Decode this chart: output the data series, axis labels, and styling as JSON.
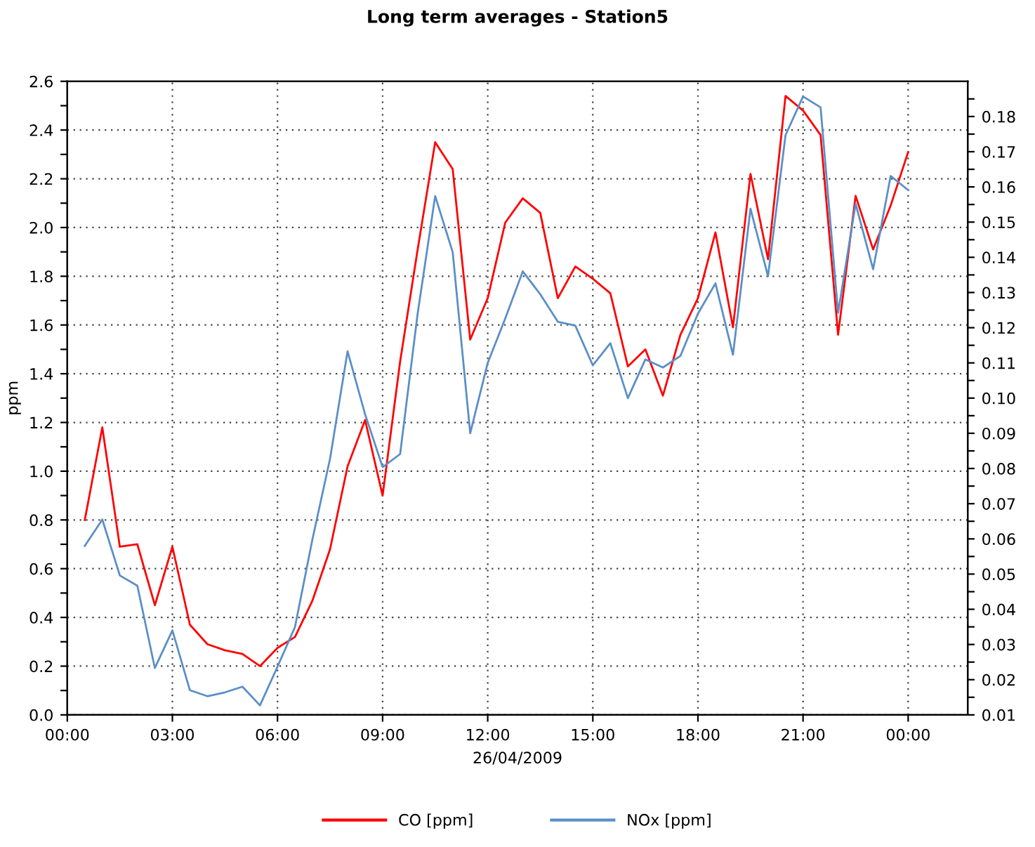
{
  "chart_data": {
    "type": "line",
    "title": "Long term averages - Station5",
    "xlabel": "26/04/2009",
    "ylabel": "ppm",
    "x": [
      0.5,
      1,
      1.5,
      2,
      2.5,
      3,
      3.5,
      4,
      4.5,
      5,
      5.5,
      6,
      6.5,
      7,
      7.5,
      8,
      8.5,
      9,
      9.5,
      10,
      10.5,
      11,
      11.5,
      12,
      12.5,
      13,
      13.5,
      14,
      14.5,
      15,
      15.5,
      16,
      16.5,
      17,
      17.5,
      18,
      18.5,
      19,
      19.5,
      20,
      20.5,
      21,
      21.5,
      22,
      22.5,
      23,
      23.5,
      24
    ],
    "series": [
      {
        "name": "CO [ppm]",
        "color": "#ff0000",
        "values": [
          0.8,
          1.18,
          0.69,
          0.7,
          0.45,
          0.69,
          0.37,
          0.29,
          0.265,
          0.25,
          0.2,
          0.275,
          0.32,
          0.47,
          0.68,
          1.02,
          1.21,
          0.9,
          1.45,
          1.91,
          2.35,
          2.24,
          1.54,
          1.71,
          2.02,
          2.12,
          2.06,
          1.71,
          1.84,
          1.79,
          1.73,
          1.43,
          1.5,
          1.31,
          1.56,
          1.71,
          1.98,
          1.59,
          2.22,
          1.87,
          2.54,
          2.48,
          2.38,
          1.56,
          2.13,
          1.91,
          2.09,
          2.31
        ]
      },
      {
        "name": "NOx [ppm]",
        "color": "#5b8fc7",
        "axis": "y2",
        "values": [
          0.058,
          0.0655,
          0.0496,
          0.0467,
          0.0233,
          0.034,
          0.017,
          0.0153,
          0.0164,
          0.018,
          0.0127,
          0.0237,
          0.035,
          0.06,
          0.0828,
          0.1133,
          0.0954,
          0.0804,
          0.0841,
          0.124,
          0.1574,
          0.1415,
          0.09,
          0.11,
          0.1226,
          0.136,
          0.1295,
          0.1217,
          0.1206,
          0.1093,
          0.1156,
          0.1,
          0.111,
          0.1087,
          0.112,
          0.124,
          0.1326,
          0.1123,
          0.1538,
          0.1346,
          0.1747,
          0.1857,
          0.1826,
          0.1242,
          0.1552,
          0.1366,
          0.1631,
          0.1591
        ]
      }
    ],
    "xlim": [
      0,
      25.7
    ],
    "xticks": [
      {
        "value": 0,
        "label": "00:00"
      },
      {
        "value": 3,
        "label": "03:00"
      },
      {
        "value": 6,
        "label": "06:00"
      },
      {
        "value": 9,
        "label": "09:00"
      },
      {
        "value": 12,
        "label": "12:00"
      },
      {
        "value": 15,
        "label": "15:00"
      },
      {
        "value": 18,
        "label": "18:00"
      },
      {
        "value": 21,
        "label": "21:00"
      },
      {
        "value": 24,
        "label": "00:00"
      }
    ],
    "ylim": [
      0,
      2.6
    ],
    "yticks": [
      {
        "value": 0,
        "label": "0.0"
      },
      {
        "value": 0.1,
        "label": null
      },
      {
        "value": 0.2,
        "label": "0.2"
      },
      {
        "value": 0.3,
        "label": null
      },
      {
        "value": 0.4,
        "label": "0.4"
      },
      {
        "value": 0.5,
        "label": null
      },
      {
        "value": 0.6,
        "label": "0.6"
      },
      {
        "value": 0.7,
        "label": null
      },
      {
        "value": 0.8,
        "label": "0.8"
      },
      {
        "value": 0.9,
        "label": null
      },
      {
        "value": 1.0,
        "label": "1.0"
      },
      {
        "value": 1.1,
        "label": null
      },
      {
        "value": 1.2,
        "label": "1.2"
      },
      {
        "value": 1.3,
        "label": null
      },
      {
        "value": 1.4,
        "label": "1.4"
      },
      {
        "value": 1.5,
        "label": null
      },
      {
        "value": 1.6,
        "label": "1.6"
      },
      {
        "value": 1.7,
        "label": null
      },
      {
        "value": 1.8,
        "label": "1.8"
      },
      {
        "value": 1.9,
        "label": null
      },
      {
        "value": 2.0,
        "label": "2.0"
      },
      {
        "value": 2.1,
        "label": null
      },
      {
        "value": 2.2,
        "label": "2.2"
      },
      {
        "value": 2.3,
        "label": null
      },
      {
        "value": 2.4,
        "label": "2.4"
      },
      {
        "value": 2.5,
        "label": null
      },
      {
        "value": 2.6,
        "label": "2.6"
      }
    ],
    "y2lim": [
      0.01,
      0.19
    ],
    "y2ticks": [
      0.01,
      {
        "value": 0.015,
        "label": null
      },
      0.02,
      {
        "value": 0.025,
        "label": null
      },
      0.03,
      {
        "value": 0.035,
        "label": null
      },
      0.04,
      {
        "value": 0.045,
        "label": null
      },
      0.05,
      {
        "value": 0.055,
        "label": null
      },
      0.06,
      {
        "value": 0.065,
        "label": null
      },
      0.07,
      {
        "value": 0.075,
        "label": null
      },
      0.08,
      {
        "value": 0.085,
        "label": null
      },
      0.09,
      {
        "value": 0.095,
        "label": null
      },
      {
        "value": 0.1,
        "label": "0.10"
      },
      {
        "value": 0.105,
        "label": null
      },
      0.11,
      {
        "value": 0.115,
        "label": null
      },
      0.12,
      {
        "value": 0.125,
        "label": null
      },
      0.13,
      {
        "value": 0.135,
        "label": null
      },
      0.14,
      {
        "value": 0.145,
        "label": null
      },
      0.15,
      {
        "value": 0.155,
        "label": null
      },
      0.16,
      {
        "value": 0.165,
        "label": null
      },
      0.17,
      {
        "value": 0.175,
        "label": null
      },
      0.18,
      {
        "value": 0.185,
        "label": null
      }
    ],
    "grid": true,
    "legend": "bottom",
    "line_style": "solid"
  }
}
